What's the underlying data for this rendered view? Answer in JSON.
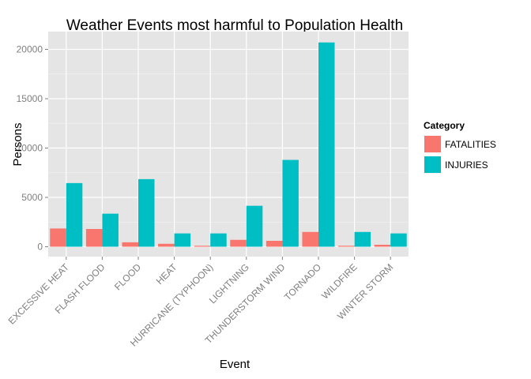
{
  "chart_data": {
    "type": "bar",
    "title": "Weather Events most harmful to Population Health",
    "xlabel": "Event",
    "ylabel": "Persons",
    "categories": [
      "EXCESSIVE HEAT",
      "FLASH FLOOD",
      "FLOOD",
      "HEAT",
      "HURRICANE (TYPHOON)",
      "LIGHTNING",
      "THUNDERSTORM WIND",
      "TORNADO",
      "WILDFIRE",
      "WINTER STORM"
    ],
    "series": [
      {
        "name": "FATALITIES",
        "color": "#F8766D",
        "values": [
          1850,
          1800,
          450,
          300,
          100,
          700,
          600,
          1500,
          100,
          200
        ]
      },
      {
        "name": "INJURIES",
        "color": "#00BFC4",
        "values": [
          6450,
          3350,
          6850,
          1350,
          1350,
          4150,
          8800,
          20700,
          1500,
          1350
        ]
      }
    ],
    "ylim": [
      -1000,
      21800
    ],
    "yticks": [
      0,
      5000,
      10000,
      15000,
      20000
    ],
    "grid": true,
    "legend": {
      "title": "Category",
      "position": "right"
    }
  }
}
